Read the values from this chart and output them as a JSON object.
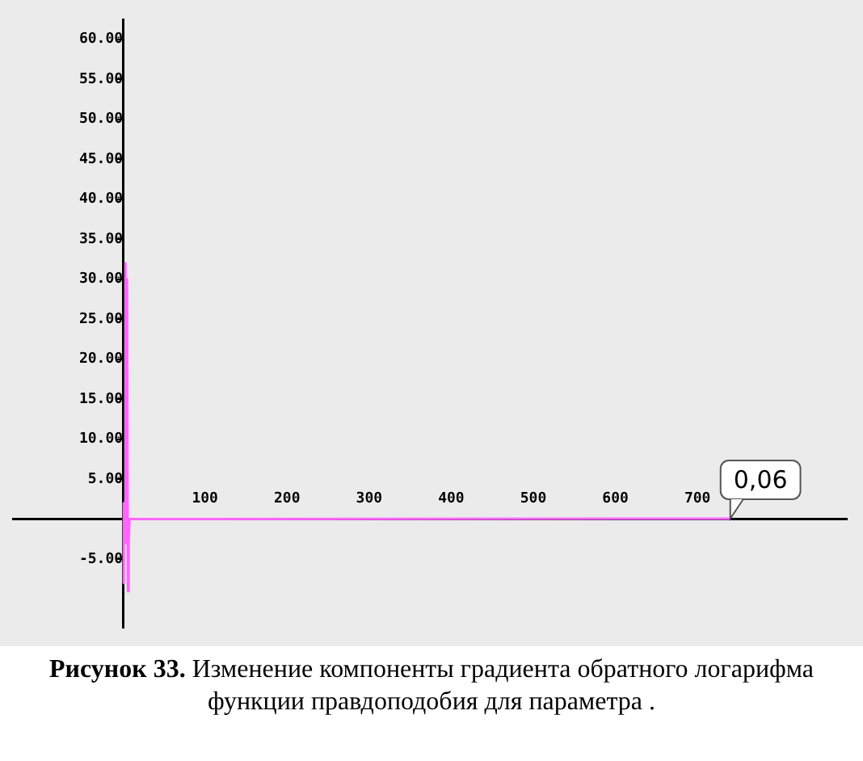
{
  "chart_data": {
    "type": "line",
    "x": [
      0,
      1,
      2,
      3,
      4,
      5,
      6,
      7,
      8,
      740
    ],
    "series": [
      {
        "color": "#ff66ff",
        "values": [
          -8,
          2,
          -3,
          32,
          -3,
          30,
          -9,
          -3,
          0,
          0.06
        ]
      }
    ],
    "xlim": [
      -134,
      882
    ],
    "ylim": [
      -13.6,
      62.5
    ],
    "xticks": [
      100,
      200,
      300,
      400,
      500,
      600,
      700
    ],
    "yticks": [
      {
        "value": -5,
        "label": "-5.00"
      },
      {
        "value": 5,
        "label": "5.00"
      },
      {
        "value": 10,
        "label": "10.00"
      },
      {
        "value": 15,
        "label": "15.00"
      },
      {
        "value": 20,
        "label": "20.00"
      },
      {
        "value": 25,
        "label": "25.00"
      },
      {
        "value": 30,
        "label": "30.00"
      },
      {
        "value": 35,
        "label": "35.00"
      },
      {
        "value": 40,
        "label": "40.00"
      },
      {
        "value": 45,
        "label": "45.00"
      },
      {
        "value": 50,
        "label": "50.00"
      },
      {
        "value": 55,
        "label": "55.00"
      },
      {
        "value": 60,
        "label": "60.00"
      }
    ],
    "grid": false,
    "legend": false,
    "marker": "none",
    "line_style": "solid",
    "annotations": [
      {
        "text": "0,06",
        "x": 740,
        "y": 0.06
      },
      "Рисунок 33.",
      "Изменение компоненты градиента обратного логарифма функции правдоподобия для параметра ."
    ]
  }
}
